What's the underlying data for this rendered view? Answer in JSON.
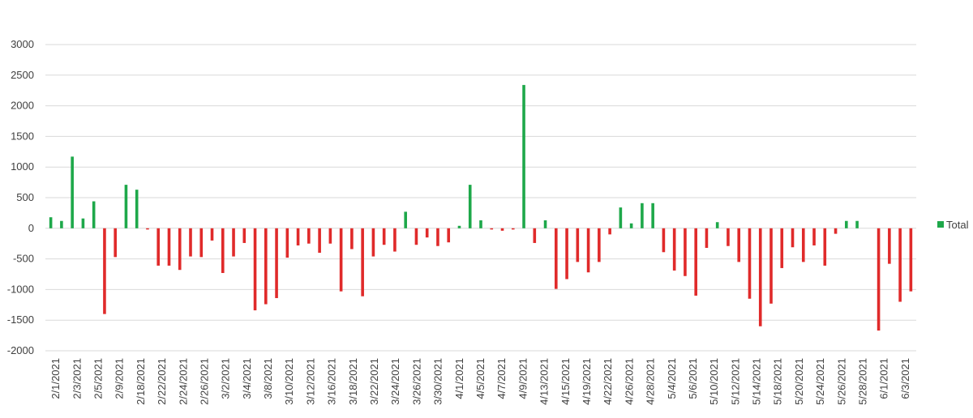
{
  "chart_data": {
    "type": "bar",
    "title": "",
    "xlabel": "",
    "ylabel": "",
    "ylim": [
      -2000,
      3000
    ],
    "y_ticks": [
      3000,
      2500,
      2000,
      1500,
      1000,
      500,
      0,
      -500,
      -1000,
      -1500,
      -2000
    ],
    "grid": "horizontal",
    "legend_position": "right",
    "positive_color": "#1ea84a",
    "negative_color": "#e02a2a",
    "series": [
      {
        "name": "Total"
      }
    ],
    "x_tick_labels": [
      "2/1/2021",
      "2/3/2021",
      "2/5/2021",
      "2/9/2021",
      "2/18/2021",
      "2/22/2021",
      "2/24/2021",
      "2/26/2021",
      "3/2/2021",
      "3/4/2021",
      "3/8/2021",
      "3/10/2021",
      "3/12/2021",
      "3/16/2021",
      "3/18/2021",
      "3/22/2021",
      "3/24/2021",
      "3/26/2021",
      "3/30/2021",
      "4/1/2021",
      "4/5/2021",
      "4/7/2021",
      "4/9/2021",
      "4/13/2021",
      "4/15/2021",
      "4/19/2021",
      "4/22/2021",
      "4/26/2021",
      "4/28/2021",
      "5/4/2021",
      "5/6/2021",
      "5/10/2021",
      "5/12/2021",
      "5/14/2021",
      "5/18/2021",
      "5/20/2021",
      "5/24/2021",
      "5/26/2021",
      "5/28/2021",
      "6/1/2021",
      "6/3/2021"
    ],
    "values": [
      180,
      120,
      1170,
      160,
      440,
      -1400,
      -470,
      710,
      630,
      -20,
      -610,
      -610,
      -680,
      -460,
      -470,
      -200,
      -730,
      -460,
      -240,
      -1340,
      -1240,
      -1140,
      -480,
      -280,
      -250,
      -400,
      -250,
      -1030,
      -340,
      -1110,
      -460,
      -270,
      -380,
      270,
      -270,
      -150,
      -290,
      -230,
      40,
      710,
      130,
      -20,
      -40,
      -20,
      2340,
      -240,
      130,
      -990,
      -830,
      -550,
      -720,
      -550,
      -100,
      340,
      80,
      410,
      410,
      -390,
      -690,
      -780,
      -1100,
      -320,
      100,
      -290,
      -550,
      -1150,
      -1600,
      -1230,
      -650,
      -310,
      -550,
      -280,
      -610,
      -90,
      120,
      120,
      0,
      -1670,
      -580,
      -1200,
      -1030
    ]
  }
}
